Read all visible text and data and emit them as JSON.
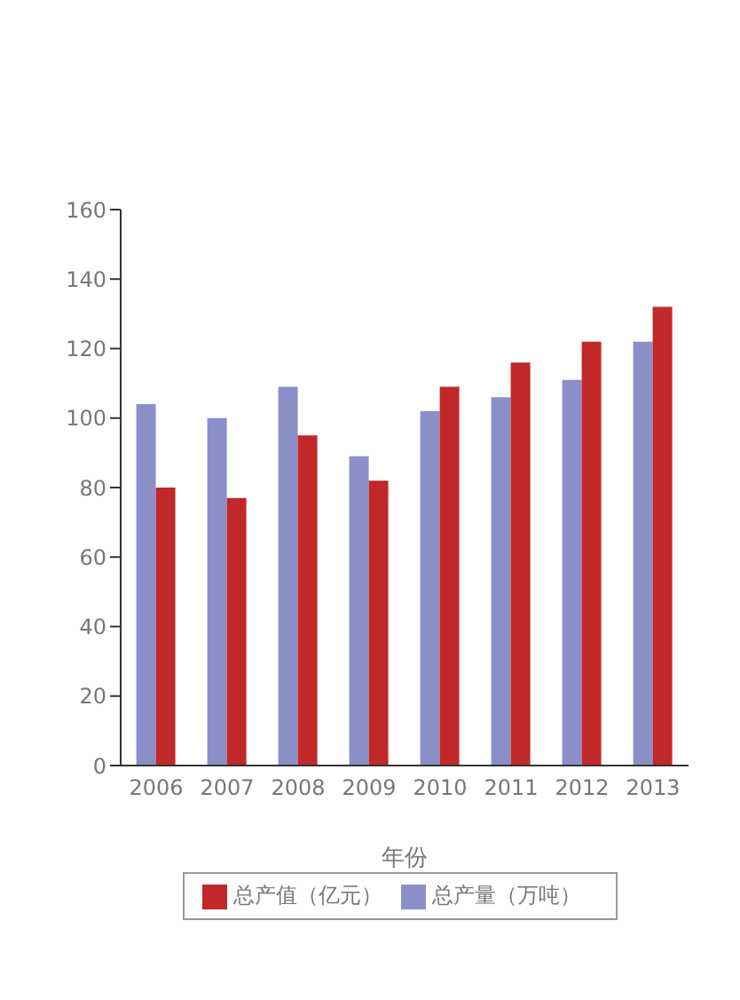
{
  "chart_data": {
    "type": "bar",
    "xlabel": "年份",
    "categories": [
      "2006",
      "2007",
      "2008",
      "2009",
      "2010",
      "2011",
      "2012",
      "2013"
    ],
    "series": [
      {
        "name": "总产量（万吨）",
        "color": "#8a8fc8",
        "values": [
          104,
          100,
          109,
          89,
          102,
          106,
          111,
          122
        ]
      },
      {
        "name": "总产值（亿元）",
        "color": "#c0282a",
        "values": [
          80,
          77,
          95,
          82,
          109,
          116,
          122,
          132
        ]
      }
    ],
    "ylim": [
      0,
      160
    ],
    "yticks": [
      0,
      20,
      40,
      60,
      80,
      100,
      120,
      140,
      160
    ],
    "grid": false,
    "legend": "bottom"
  }
}
